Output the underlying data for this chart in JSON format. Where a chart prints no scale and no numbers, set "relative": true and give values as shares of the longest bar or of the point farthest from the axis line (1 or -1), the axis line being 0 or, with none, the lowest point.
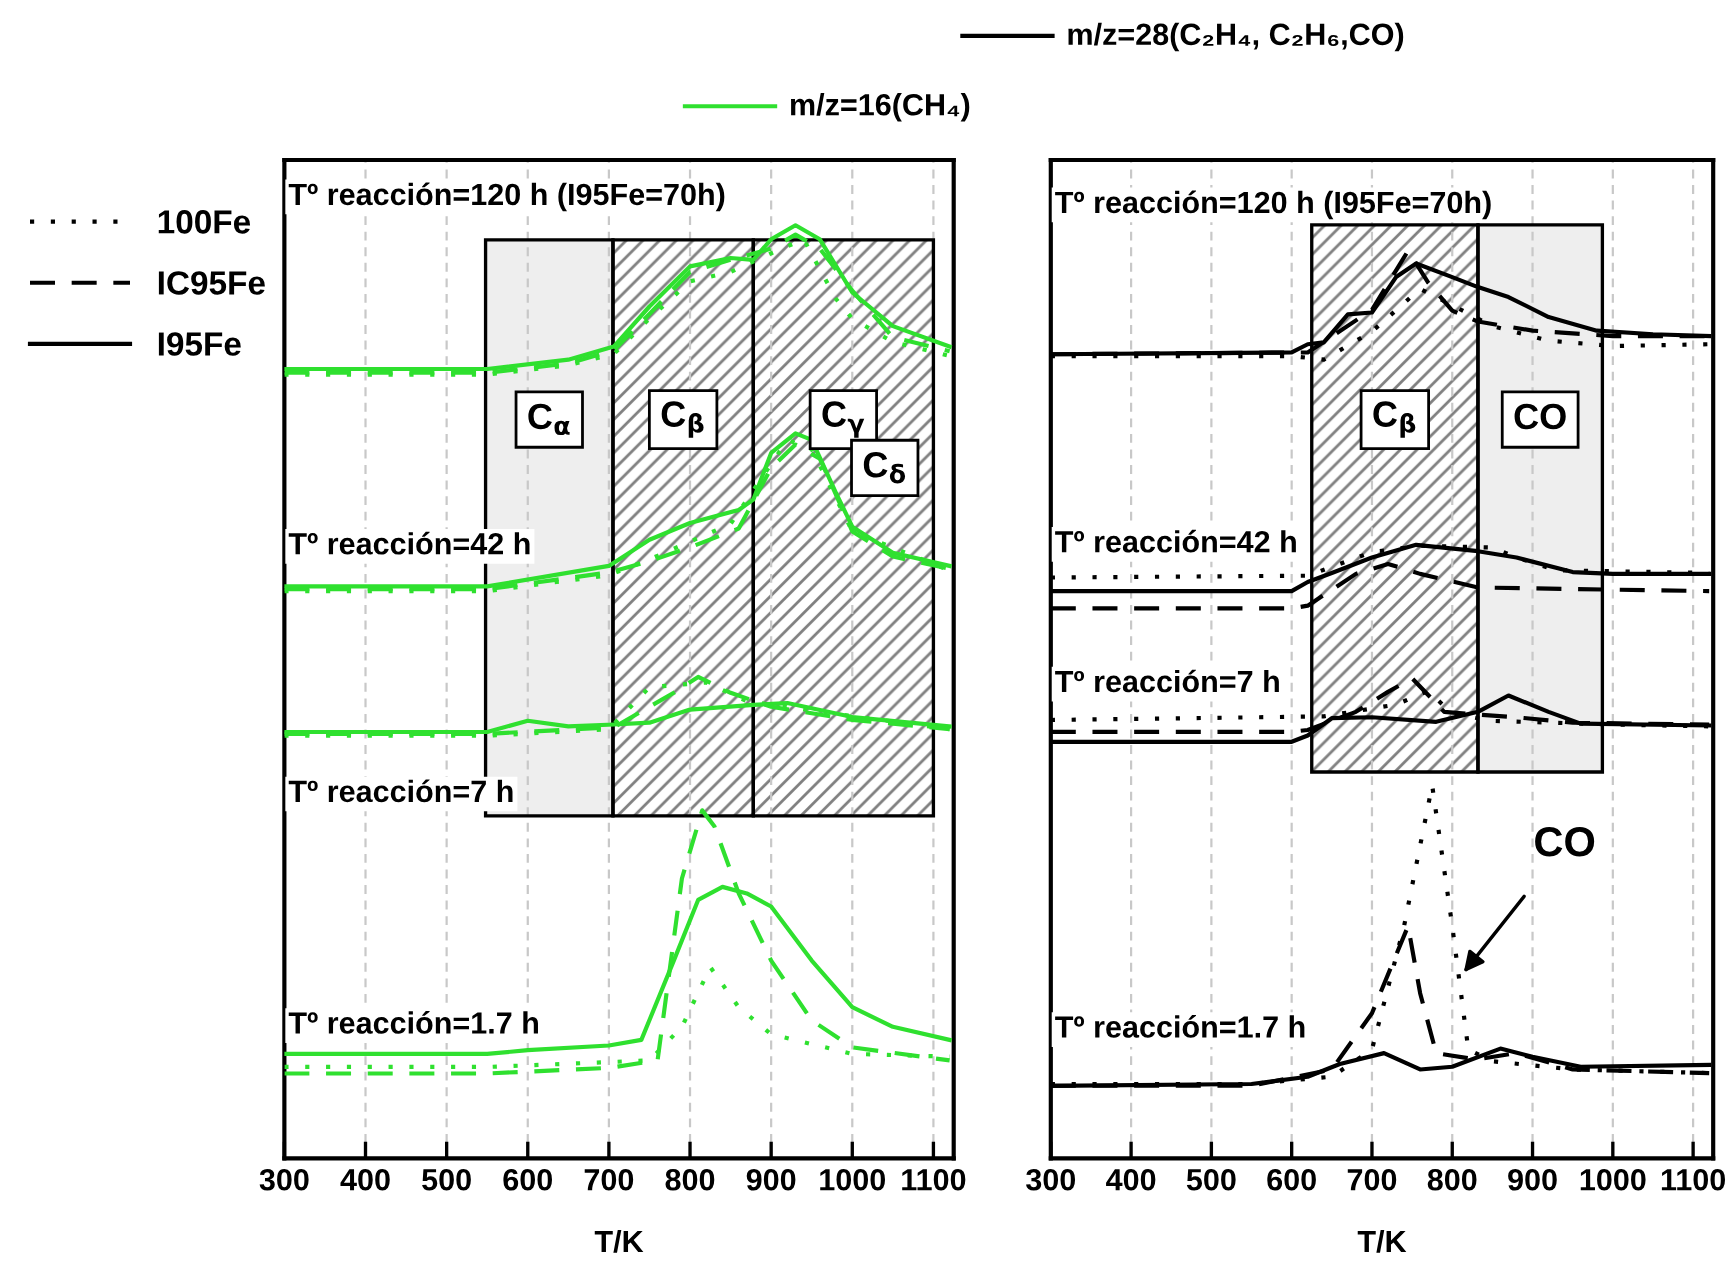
{
  "chart_data": [
    {
      "type": "line",
      "title": "m/z=16(CH₄)",
      "relative": true,
      "xlabel": "T/K",
      "xlim": [
        300,
        1125
      ],
      "xticks": [
        300,
        400,
        500,
        600,
        700,
        800,
        900,
        1000,
        1100
      ],
      "grid": "x",
      "tick_labels": "x",
      "bands": [
        {
          "axis": "x",
          "from": 548,
          "to": 705,
          "label": "C$_{α}$",
          "color": "#eeeeee"
        },
        {
          "axis": "x",
          "from": 705,
          "to": 878,
          "label": "C$_{β}$",
          "color": "#808080"
        },
        {
          "axis": "x",
          "from": 878,
          "to": 1100,
          "label": "C$_{γ}$",
          "color": "#808080"
        }
      ],
      "annotations": [
        {
          "text": "C$_{δ}$",
          "x": 1040,
          "y": 0.74
        },
        "Tº reacción=120 h (I95Fe=70h)",
        "Tº reacción=42 h",
        "Tº reacción=7 h",
        "Tº reacción=1.7 h"
      ],
      "series": [
        {
          "color": "#2fe02f",
          "line_style": "solid",
          "x": [
            300,
            550,
            650,
            706,
            750,
            800,
            850,
            878,
            900,
            930,
            960,
            1000,
            1050,
            1120
          ],
          "values": [
            0.846,
            0.846,
            0.856,
            0.87,
            0.913,
            0.956,
            0.965,
            0.963,
            0.985,
            1.0,
            0.985,
            0.928,
            0.892,
            0.87
          ]
        },
        {
          "color": "#2fe02f",
          "line_style": "dashed",
          "x": [
            300,
            550,
            650,
            706,
            750,
            800,
            850,
            900,
            930,
            960,
            1000,
            1050,
            1120
          ],
          "values": [
            0.842,
            0.842,
            0.852,
            0.866,
            0.905,
            0.95,
            0.963,
            0.975,
            0.99,
            0.975,
            0.93,
            0.88,
            0.865
          ]
        },
        {
          "color": "#2fe02f",
          "line_style": "dotted",
          "x": [
            300,
            550,
            650,
            706,
            750,
            800,
            850,
            900,
            940,
            980,
            1000,
            1050,
            1120
          ],
          "values": [
            0.84,
            0.84,
            0.85,
            0.862,
            0.9,
            0.94,
            0.95,
            0.97,
            0.985,
            0.921,
            0.9,
            0.875,
            0.86
          ]
        },
        {
          "color": "#2fe02f",
          "line_style": "solid",
          "x": [
            300,
            550,
            700,
            750,
            800,
            860,
            878,
            900,
            930,
            950,
            980,
            1000,
            1050,
            1120
          ],
          "values": [
            0.613,
            0.613,
            0.635,
            0.663,
            0.681,
            0.695,
            0.706,
            0.756,
            0.777,
            0.77,
            0.713,
            0.677,
            0.649,
            0.635
          ]
        },
        {
          "color": "#2fe02f",
          "line_style": "dashed",
          "x": [
            300,
            550,
            700,
            750,
            800,
            860,
            900,
            930,
            960,
            1000,
            1050,
            1120
          ],
          "values": [
            0.61,
            0.61,
            0.628,
            0.64,
            0.655,
            0.675,
            0.74,
            0.765,
            0.75,
            0.672,
            0.645,
            0.632
          ]
        },
        {
          "color": "#2fe02f",
          "line_style": "dotted",
          "x": [
            300,
            550,
            700,
            750,
            850,
            920,
            950,
            1000,
            1120
          ],
          "values": [
            0.608,
            0.608,
            0.625,
            0.642,
            0.68,
            0.77,
            0.76,
            0.672,
            0.63
          ]
        },
        {
          "color": "#2fe02f",
          "line_style": "solid",
          "x": [
            300,
            550,
            600,
            650,
            706,
            750,
            800,
            878,
            920,
            1000,
            1120
          ],
          "values": [
            0.457,
            0.457,
            0.469,
            0.463,
            0.465,
            0.467,
            0.481,
            0.486,
            0.488,
            0.473,
            0.463
          ]
        },
        {
          "color": "#2fe02f",
          "line_style": "dashed",
          "x": [
            300,
            550,
            706,
            780,
            810,
            850,
            900,
            1000,
            1120
          ],
          "values": [
            0.455,
            0.455,
            0.462,
            0.499,
            0.516,
            0.499,
            0.484,
            0.47,
            0.46
          ]
        },
        {
          "color": "#2fe02f",
          "line_style": "dotted",
          "x": [
            300,
            550,
            700,
            750,
            820,
            870,
            950,
            1120
          ],
          "values": [
            0.453,
            0.453,
            0.46,
            0.505,
            0.51,
            0.49,
            0.48,
            0.46
          ]
        },
        {
          "color": "#2fe02f",
          "line_style": "solid",
          "x": [
            300,
            550,
            600,
            700,
            740,
            780,
            810,
            840,
            870,
            900,
            950,
            1000,
            1050,
            1120
          ],
          "values": [
            0.112,
            0.112,
            0.116,
            0.121,
            0.127,
            0.212,
            0.277,
            0.291,
            0.284,
            0.27,
            0.212,
            0.162,
            0.141,
            0.127
          ]
        },
        {
          "color": "#2fe02f",
          "line_style": "dashed",
          "x": [
            300,
            550,
            700,
            760,
            790,
            815,
            830,
            860,
            900,
            950,
            1000,
            1120
          ],
          "values": [
            0.091,
            0.091,
            0.097,
            0.105,
            0.3,
            0.373,
            0.356,
            0.284,
            0.212,
            0.148,
            0.119,
            0.105
          ]
        },
        {
          "color": "#2fe02f",
          "line_style": "dotted",
          "x": [
            300,
            550,
            750,
            790,
            825,
            860,
            900,
            1000,
            1120
          ],
          "values": [
            0.098,
            0.098,
            0.105,
            0.141,
            0.205,
            0.162,
            0.133,
            0.112,
            0.109
          ]
        }
      ]
    },
    {
      "type": "line",
      "title": "m/z=28(C₂H₄, C₂H₆,CO)",
      "relative": true,
      "xlabel": "T/K",
      "xlim": [
        300,
        1125
      ],
      "xticks": [
        300,
        400,
        500,
        600,
        700,
        800,
        900,
        1000,
        1100
      ],
      "grid": "x",
      "tick_labels": "x",
      "legend": "left",
      "bands": [
        {
          "axis": "x",
          "from": 625,
          "to": 832,
          "label": "C$_{β}$",
          "color": "#808080"
        },
        {
          "axis": "x",
          "from": 832,
          "to": 987,
          "label": "CO",
          "color": "#eeeeee"
        }
      ],
      "annotations": [
        {
          "text": "CO",
          "x": 810,
          "y": 0.2
        },
        "Tº reacción=120 h (I95Fe=70h)",
        "Tº reacción=42 h",
        "Tº reacción=7 h",
        "Tº reacción=1.7 h"
      ],
      "series": [
        {
          "name": "I95Fe",
          "color": "#000000",
          "line_style": "solid",
          "x": [
            300,
            600,
            620,
            640,
            670,
            700,
            730,
            755,
            800,
            832,
            870,
            920,
            980,
            1050,
            1120
          ],
          "values": [
            0.886,
            0.888,
            0.897,
            0.899,
            0.93,
            0.932,
            0.971,
            0.986,
            0.971,
            0.96,
            0.949,
            0.927,
            0.912,
            0.908,
            0.906
          ]
        },
        {
          "name": "IC95Fe",
          "color": "#000000",
          "line_style": "dashed",
          "x": [
            300,
            620,
            700,
            745,
            770,
            800,
            832,
            900,
            1000,
            1120
          ],
          "values": [
            0.886,
            0.888,
            0.935,
            1.0,
            0.965,
            0.934,
            0.922,
            0.912,
            0.906,
            0.906
          ]
        },
        {
          "name": "100Fe",
          "color": "#000000",
          "line_style": "dotted",
          "x": [
            300,
            600,
            640,
            700,
            760,
            800,
            850,
            920,
            1000,
            1120
          ],
          "values": [
            0.884,
            0.884,
            0.88,
            0.911,
            0.958,
            0.94,
            0.917,
            0.901,
            0.895,
            0.897
          ]
        },
        {
          "color": "#000000",
          "line_style": "solid",
          "x": [
            300,
            600,
            620,
            650,
            700,
            755,
            832,
            880,
            950,
            1000,
            1120
          ],
          "values": [
            0.625,
            0.625,
            0.635,
            0.645,
            0.662,
            0.676,
            0.669,
            0.662,
            0.646,
            0.644,
            0.644
          ]
        },
        {
          "color": "#000000",
          "line_style": "dashed",
          "x": [
            300,
            600,
            620,
            680,
            720,
            760,
            832,
            1120
          ],
          "values": [
            0.606,
            0.606,
            0.609,
            0.644,
            0.655,
            0.644,
            0.629,
            0.625
          ]
        },
        {
          "color": "#000000",
          "line_style": "dotted",
          "x": [
            300,
            620,
            700,
            760,
            850,
            880,
            930,
            1120
          ],
          "values": [
            0.64,
            0.642,
            0.668,
            0.675,
            0.673,
            0.662,
            0.648,
            0.645
          ]
        },
        {
          "color": "#000000",
          "line_style": "solid",
          "x": [
            300,
            600,
            620,
            650,
            700,
            780,
            832,
            870,
            920,
            960,
            1120
          ],
          "values": [
            0.459,
            0.459,
            0.466,
            0.485,
            0.486,
            0.481,
            0.492,
            0.51,
            0.492,
            0.479,
            0.477
          ]
        },
        {
          "color": "#000000",
          "line_style": "dashed",
          "x": [
            300,
            600,
            620,
            680,
            720,
            750,
            790,
            832,
            880,
            950,
            1120
          ],
          "values": [
            0.47,
            0.47,
            0.472,
            0.492,
            0.514,
            0.529,
            0.492,
            0.489,
            0.486,
            0.48,
            0.478
          ]
        },
        {
          "color": "#000000",
          "line_style": "dotted",
          "x": [
            300,
            640,
            730,
            770,
            800,
            850,
            1000,
            1120
          ],
          "values": [
            0.483,
            0.487,
            0.5,
            0.515,
            0.49,
            0.482,
            0.478,
            0.476
          ]
        },
        {
          "color": "#000000",
          "line_style": "solid",
          "x": [
            300,
            550,
            620,
            660,
            715,
            760,
            800,
            860,
            900,
            960,
            1120
          ],
          "values": [
            0.08,
            0.082,
            0.09,
            0.104,
            0.116,
            0.098,
            0.101,
            0.121,
            0.112,
            0.101,
            0.103
          ]
        },
        {
          "color": "#000000",
          "line_style": "dashed",
          "x": [
            300,
            550,
            650,
            700,
            745,
            760,
            780,
            830,
            880,
            950,
            1120
          ],
          "values": [
            0.08,
            0.08,
            0.098,
            0.16,
            0.256,
            0.182,
            0.116,
            0.109,
            0.116,
            0.098,
            0.094
          ]
        },
        {
          "color": "#000000",
          "line_style": "dotted",
          "x": [
            300,
            550,
            650,
            700,
            740,
            775,
            800,
            820,
            850,
            950,
            1120
          ],
          "values": [
            0.082,
            0.082,
            0.09,
            0.12,
            0.256,
            0.411,
            0.256,
            0.12,
            0.107,
            0.098,
            0.094
          ]
        }
      ]
    }
  ]
}
